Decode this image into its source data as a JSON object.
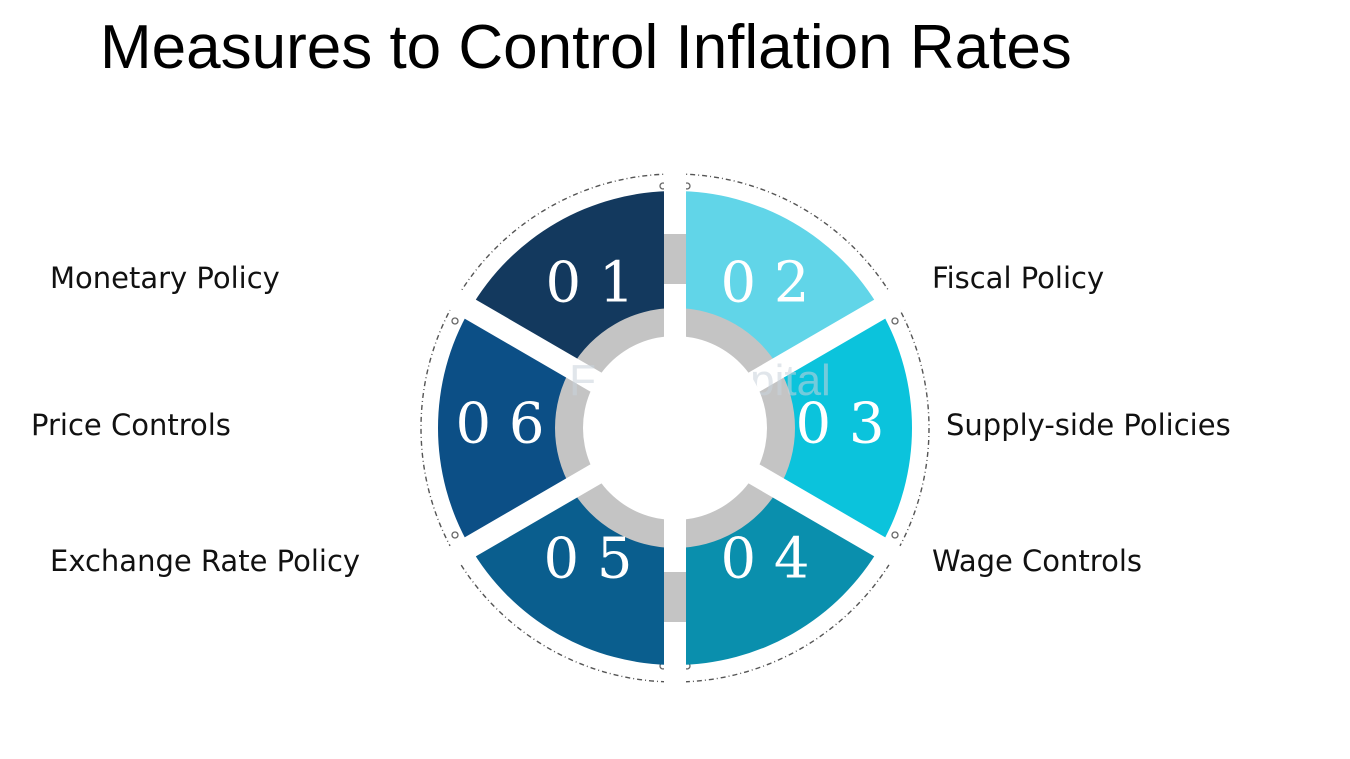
{
  "title": "Measures to Control Inflation Rates",
  "watermark": "FasterCapital",
  "segments": [
    {
      "number": "0 1",
      "label": "Monetary Policy",
      "color": "#13395e"
    },
    {
      "number": "0 2",
      "label": "Fiscal Policy",
      "color": "#61d5e8"
    },
    {
      "number": "0 3",
      "label": "Supply-side Policies",
      "color": "#0bc3dc"
    },
    {
      "number": "0 4",
      "label": "Wage Controls",
      "color": "#0a8fad"
    },
    {
      "number": "0 5",
      "label": "Exchange Rate Policy",
      "color": "#0a5e8e"
    },
    {
      "number": "0 6",
      "label": "Price Controls",
      "color": "#0c4f86"
    }
  ]
}
